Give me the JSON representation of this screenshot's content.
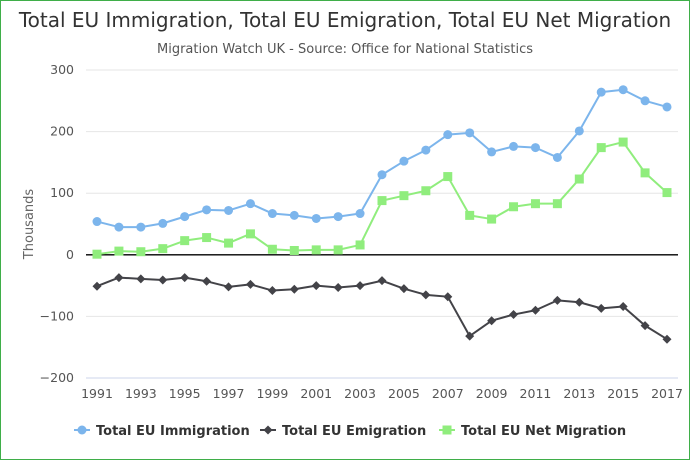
{
  "chart_data": {
    "type": "line",
    "title": "Total EU Immigration, Total EU Emigration, Total EU Net Migration",
    "subtitle": "Migration Watch UK - Source: Office for National Statistics",
    "ylabel": "Thousands",
    "xlabel": "",
    "ylim": [
      -200,
      300
    ],
    "yticks": [
      300,
      200,
      100,
      0,
      -100,
      -200
    ],
    "ytick_labels": [
      "300",
      "200",
      "100",
      "0",
      "−100",
      "−200"
    ],
    "x": [
      1991,
      1992,
      1993,
      1994,
      1995,
      1996,
      1997,
      1998,
      1999,
      2000,
      2001,
      2002,
      2003,
      2004,
      2005,
      2006,
      2007,
      2008,
      2009,
      2010,
      2011,
      2012,
      2013,
      2014,
      2015,
      2016,
      2017
    ],
    "xtick_labels": [
      "1991",
      "1993",
      "1995",
      "1997",
      "1999",
      "2001",
      "2003",
      "2005",
      "2007",
      "2009",
      "2011",
      "2013",
      "2015",
      "2017"
    ],
    "series": [
      {
        "name": "Total EU Immigration",
        "color": "#7cb5ec",
        "marker": "circle",
        "values": [
          54,
          45,
          45,
          51,
          62,
          73,
          72,
          83,
          67,
          64,
          59,
          62,
          67,
          130,
          152,
          170,
          195,
          198,
          167,
          176,
          174,
          158,
          201,
          264,
          268,
          250,
          240
        ]
      },
      {
        "name": "Total EU Emigration",
        "color": "#434348",
        "marker": "diamond",
        "values": [
          -51,
          -37,
          -39,
          -41,
          -37,
          -43,
          -52,
          -48,
          -58,
          -56,
          -50,
          -53,
          -50,
          -42,
          -55,
          -65,
          -68,
          -132,
          -107,
          -97,
          -90,
          -74,
          -77,
          -87,
          -84,
          -115,
          -137
        ]
      },
      {
        "name": "Total EU Net Migration",
        "color": "#90ed7d",
        "marker": "square",
        "values": [
          1,
          6,
          5,
          10,
          23,
          28,
          19,
          34,
          9,
          7,
          8,
          8,
          16,
          88,
          96,
          104,
          127,
          64,
          58,
          78,
          83,
          83,
          123,
          174,
          183,
          133,
          101
        ]
      }
    ],
    "zero_line": true,
    "grid": "horizontal",
    "legend_position": "bottom"
  }
}
